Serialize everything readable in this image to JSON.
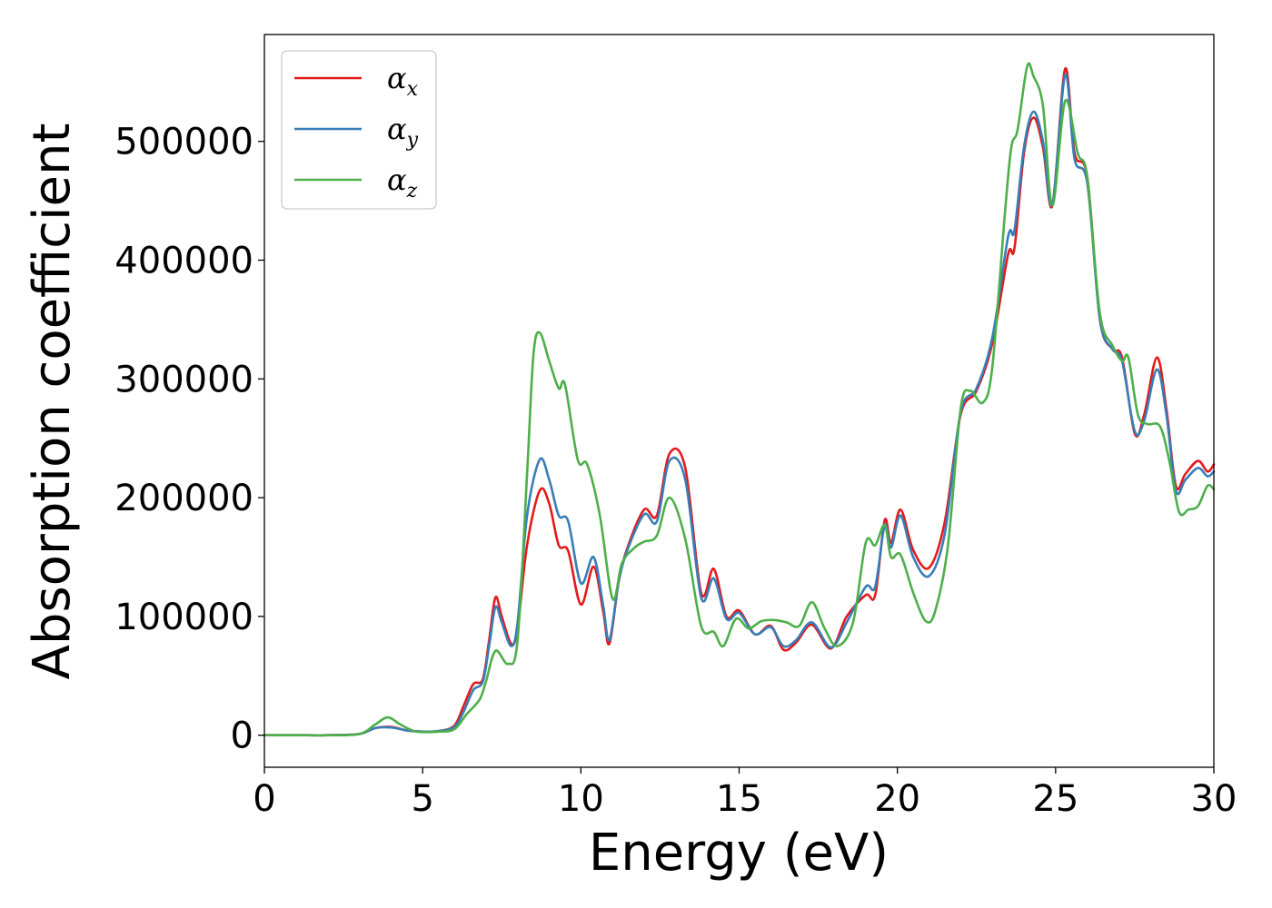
{
  "chart_data": {
    "type": "line",
    "xlabel": "Energy (eV)",
    "ylabel": "Absorption coefficient",
    "xlim": [
      0,
      30
    ],
    "ylim": [
      -27000,
      590000
    ],
    "xticks": [
      0,
      5,
      10,
      15,
      20,
      25,
      30
    ],
    "yticks": [
      0,
      100000,
      200000,
      300000,
      400000,
      500000
    ],
    "grid": false,
    "legend_position": "top-left",
    "series": [
      {
        "name": "α",
        "subscript": "x",
        "color": "#e41a1c",
        "points": [
          [
            0,
            0
          ],
          [
            1,
            0
          ],
          [
            2,
            0
          ],
          [
            3,
            1000
          ],
          [
            3.5,
            6000
          ],
          [
            4,
            7000
          ],
          [
            4.5,
            4000
          ],
          [
            5,
            3000
          ],
          [
            5.5,
            3500
          ],
          [
            6,
            8000
          ],
          [
            6.3,
            25000
          ],
          [
            6.6,
            43000
          ],
          [
            6.9,
            47000
          ],
          [
            7.1,
            80000
          ],
          [
            7.3,
            116000
          ],
          [
            7.5,
            100000
          ],
          [
            7.8,
            77000
          ],
          [
            8,
            90000
          ],
          [
            8.3,
            160000
          ],
          [
            8.7,
            206000
          ],
          [
            9,
            195000
          ],
          [
            9.3,
            160000
          ],
          [
            9.6,
            155000
          ],
          [
            10,
            110000
          ],
          [
            10.4,
            142000
          ],
          [
            10.7,
            105000
          ],
          [
            10.9,
            77000
          ],
          [
            11.2,
            130000
          ],
          [
            11.5,
            160000
          ],
          [
            12,
            190000
          ],
          [
            12.4,
            185000
          ],
          [
            12.8,
            237000
          ],
          [
            13.3,
            225000
          ],
          [
            13.8,
            120000
          ],
          [
            14.2,
            140000
          ],
          [
            14.6,
            100000
          ],
          [
            15,
            105000
          ],
          [
            15.5,
            85000
          ],
          [
            16,
            92000
          ],
          [
            16.4,
            72000
          ],
          [
            16.8,
            78000
          ],
          [
            17.3,
            93000
          ],
          [
            17.9,
            73000
          ],
          [
            18.4,
            100000
          ],
          [
            19,
            118000
          ],
          [
            19.3,
            118000
          ],
          [
            19.6,
            181000
          ],
          [
            19.8,
            162000
          ],
          [
            20.1,
            190000
          ],
          [
            20.5,
            156000
          ],
          [
            21,
            141000
          ],
          [
            21.5,
            180000
          ],
          [
            22,
            270000
          ],
          [
            22.5,
            290000
          ],
          [
            23,
            330000
          ],
          [
            23.5,
            405000
          ],
          [
            23.7,
            410000
          ],
          [
            24,
            490000
          ],
          [
            24.3,
            520000
          ],
          [
            24.6,
            495000
          ],
          [
            24.9,
            446000
          ],
          [
            25.3,
            561000
          ],
          [
            25.6,
            490000
          ],
          [
            26,
            470000
          ],
          [
            26.4,
            350000
          ],
          [
            26.8,
            325000
          ],
          [
            27.1,
            318000
          ],
          [
            27.5,
            254000
          ],
          [
            27.8,
            270000
          ],
          [
            28.2,
            318000
          ],
          [
            28.5,
            275000
          ],
          [
            28.8,
            210000
          ],
          [
            29.1,
            220000
          ],
          [
            29.5,
            231000
          ],
          [
            29.8,
            222000
          ],
          [
            30,
            228000
          ]
        ]
      },
      {
        "name": "α",
        "subscript": "y",
        "color": "#377eb8",
        "points": [
          [
            0,
            0
          ],
          [
            1,
            0
          ],
          [
            2,
            0
          ],
          [
            3,
            1000
          ],
          [
            3.5,
            6000
          ],
          [
            4,
            6500
          ],
          [
            4.5,
            4000
          ],
          [
            5,
            3000
          ],
          [
            5.5,
            3500
          ],
          [
            6,
            7000
          ],
          [
            6.3,
            20000
          ],
          [
            6.6,
            38000
          ],
          [
            6.9,
            45000
          ],
          [
            7.1,
            75000
          ],
          [
            7.3,
            108000
          ],
          [
            7.5,
            95000
          ],
          [
            7.8,
            75000
          ],
          [
            8,
            95000
          ],
          [
            8.3,
            185000
          ],
          [
            8.7,
            232000
          ],
          [
            9,
            215000
          ],
          [
            9.3,
            185000
          ],
          [
            9.6,
            180000
          ],
          [
            10,
            128000
          ],
          [
            10.4,
            150000
          ],
          [
            10.7,
            110000
          ],
          [
            10.9,
            80000
          ],
          [
            11.2,
            130000
          ],
          [
            11.5,
            158000
          ],
          [
            12,
            186000
          ],
          [
            12.4,
            180000
          ],
          [
            12.8,
            231000
          ],
          [
            13.3,
            215000
          ],
          [
            13.8,
            116000
          ],
          [
            14.2,
            132000
          ],
          [
            14.6,
            98000
          ],
          [
            15,
            103000
          ],
          [
            15.5,
            85000
          ],
          [
            16,
            91000
          ],
          [
            16.4,
            75000
          ],
          [
            16.8,
            80000
          ],
          [
            17.3,
            95000
          ],
          [
            17.9,
            74000
          ],
          [
            18.4,
            95000
          ],
          [
            19,
            125000
          ],
          [
            19.3,
            125000
          ],
          [
            19.6,
            177000
          ],
          [
            19.8,
            158000
          ],
          [
            20.1,
            185000
          ],
          [
            20.5,
            150000
          ],
          [
            21,
            134000
          ],
          [
            21.5,
            170000
          ],
          [
            22,
            272000
          ],
          [
            22.5,
            292000
          ],
          [
            23,
            335000
          ],
          [
            23.5,
            420000
          ],
          [
            23.7,
            425000
          ],
          [
            24,
            495000
          ],
          [
            24.3,
            525000
          ],
          [
            24.6,
            500000
          ],
          [
            24.9,
            447000
          ],
          [
            25.3,
            556000
          ],
          [
            25.6,
            485000
          ],
          [
            26,
            465000
          ],
          [
            26.4,
            350000
          ],
          [
            26.8,
            325000
          ],
          [
            27.1,
            315000
          ],
          [
            27.5,
            256000
          ],
          [
            27.8,
            265000
          ],
          [
            28.2,
            308000
          ],
          [
            28.5,
            270000
          ],
          [
            28.8,
            206000
          ],
          [
            29.1,
            215000
          ],
          [
            29.5,
            225000
          ],
          [
            29.8,
            218000
          ],
          [
            30,
            222000
          ]
        ]
      },
      {
        "name": "α",
        "subscript": "z",
        "color": "#4daf4a",
        "points": [
          [
            0,
            0
          ],
          [
            1,
            0
          ],
          [
            2,
            0
          ],
          [
            3,
            1000
          ],
          [
            3.5,
            9000
          ],
          [
            3.9,
            15000
          ],
          [
            4.3,
            9000
          ],
          [
            4.8,
            3000
          ],
          [
            5.5,
            3000
          ],
          [
            6,
            5000
          ],
          [
            6.4,
            18000
          ],
          [
            6.8,
            30000
          ],
          [
            7,
            45000
          ],
          [
            7.3,
            71000
          ],
          [
            7.7,
            60000
          ],
          [
            8,
            80000
          ],
          [
            8.3,
            220000
          ],
          [
            8.5,
            320000
          ],
          [
            8.7,
            339000
          ],
          [
            9,
            315000
          ],
          [
            9.3,
            292000
          ],
          [
            9.5,
            295000
          ],
          [
            9.9,
            232000
          ],
          [
            10.2,
            228000
          ],
          [
            10.6,
            185000
          ],
          [
            11,
            115000
          ],
          [
            11.3,
            145000
          ],
          [
            11.7,
            158000
          ],
          [
            12,
            163000
          ],
          [
            12.4,
            168000
          ],
          [
            12.8,
            200000
          ],
          [
            13.3,
            165000
          ],
          [
            13.8,
            92000
          ],
          [
            14.2,
            87000
          ],
          [
            14.5,
            75000
          ],
          [
            14.9,
            98000
          ],
          [
            15.3,
            90000
          ],
          [
            15.7,
            96000
          ],
          [
            16.1,
            97000
          ],
          [
            16.5,
            95000
          ],
          [
            16.9,
            92000
          ],
          [
            17.3,
            112000
          ],
          [
            17.7,
            90000
          ],
          [
            18.1,
            75000
          ],
          [
            18.6,
            95000
          ],
          [
            19,
            162000
          ],
          [
            19.3,
            160000
          ],
          [
            19.6,
            177000
          ],
          [
            19.8,
            150000
          ],
          [
            20.1,
            152000
          ],
          [
            20.5,
            120000
          ],
          [
            20.9,
            96000
          ],
          [
            21.2,
            105000
          ],
          [
            21.6,
            160000
          ],
          [
            22,
            275000
          ],
          [
            22.3,
            290000
          ],
          [
            22.7,
            280000
          ],
          [
            23,
            310000
          ],
          [
            23.4,
            440000
          ],
          [
            23.6,
            495000
          ],
          [
            23.8,
            510000
          ],
          [
            24.1,
            563000
          ],
          [
            24.3,
            555000
          ],
          [
            24.6,
            530000
          ],
          [
            24.9,
            446000
          ],
          [
            25.3,
            534000
          ],
          [
            25.7,
            490000
          ],
          [
            26,
            470000
          ],
          [
            26.4,
            355000
          ],
          [
            26.8,
            328000
          ],
          [
            27.1,
            315000
          ],
          [
            27.3,
            318000
          ],
          [
            27.6,
            270000
          ],
          [
            27.9,
            262000
          ],
          [
            28.3,
            260000
          ],
          [
            28.6,
            230000
          ],
          [
            28.9,
            188000
          ],
          [
            29.2,
            190000
          ],
          [
            29.5,
            193000
          ],
          [
            29.8,
            210000
          ],
          [
            30,
            207000
          ]
        ]
      }
    ]
  }
}
